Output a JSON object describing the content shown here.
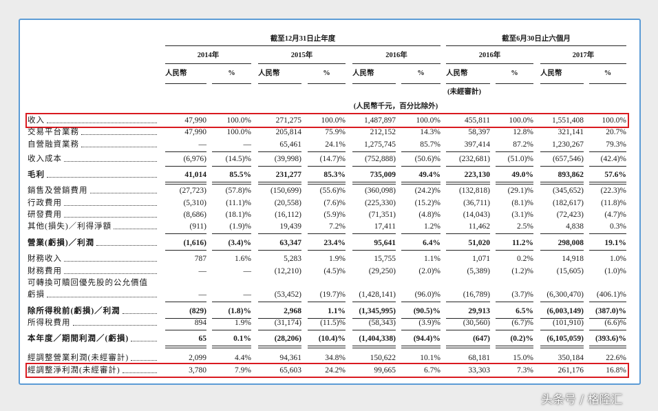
{
  "header": {
    "group_headers": [
      "截至12月31日止年度",
      "截至6月30日止六個月"
    ],
    "years": [
      "2014年",
      "2015年",
      "2016年",
      "2016年",
      "2017年"
    ],
    "column_headers": [
      "人民幣",
      "%",
      "人民幣",
      "%",
      "人民幣",
      "%",
      "人民幣",
      "%",
      "人民幣",
      "%"
    ],
    "unaudited_note": "(未經審計)",
    "unit_note": "(人民幣千元，百分比除外)"
  },
  "table": {
    "rows": [
      {
        "label": "收入",
        "highlighted": true,
        "values": [
          "47,990",
          "100.0%",
          "271,275",
          "100.0%",
          "1,487,897",
          "100.0%",
          "455,811",
          "100.0%",
          "1,551,408",
          "100.0%"
        ]
      },
      {
        "label": "交易平台業務",
        "values": [
          "47,990",
          "100.0%",
          "205,814",
          "75.9%",
          "212,152",
          "14.3%",
          "58,397",
          "12.8%",
          "321,141",
          "20.7%"
        ]
      },
      {
        "label": "自營融資業務",
        "values": [
          "—",
          "—",
          "65,461",
          "24.1%",
          "1,275,745",
          "85.7%",
          "397,414",
          "87.2%",
          "1,230,267",
          "79.3%"
        ]
      },
      {
        "label": "收入成本",
        "values": [
          "(6,976)",
          "(14.5)%",
          "(39,998)",
          "(14.7)%",
          "(752,888)",
          "(50.6)%",
          "(232,681)",
          "(51.0)%",
          "(657,546)",
          "(42.4)%"
        ]
      },
      {
        "label": "毛利",
        "emphasis": true,
        "values": [
          "41,014",
          "85.5%",
          "231,277",
          "85.3%",
          "735,009",
          "49.4%",
          "223,130",
          "49.0%",
          "893,862",
          "57.6%"
        ]
      },
      {
        "label": "銷售及營銷費用",
        "values": [
          "(27,723)",
          "(57.8)%",
          "(150,699)",
          "(55.6)%",
          "(360,098)",
          "(24.2)%",
          "(132,818)",
          "(29.1)%",
          "(345,652)",
          "(22.3)%"
        ]
      },
      {
        "label": "行政費用",
        "values": [
          "(5,310)",
          "(11.1)%",
          "(20,558)",
          "(7.6)%",
          "(225,330)",
          "(15.2)%",
          "(36,711)",
          "(8.1)%",
          "(182,617)",
          "(11.8)%"
        ]
      },
      {
        "label": "研發費用",
        "values": [
          "(8,686)",
          "(18.1)%",
          "(16,112)",
          "(5.9)%",
          "(71,351)",
          "(4.8)%",
          "(14,043)",
          "(3.1)%",
          "(72,423)",
          "(4.7)%"
        ]
      },
      {
        "label": "其他(損失)／利得淨額",
        "values": [
          "(911)",
          "(1.9)%",
          "19,439",
          "7.2%",
          "17,411",
          "1.2%",
          "11,462",
          "2.5%",
          "4,838",
          "0.3%"
        ]
      },
      {
        "label": "營業(虧損)／利潤",
        "emphasis": true,
        "values": [
          "(1,616)",
          "(3.4)%",
          "63,347",
          "23.4%",
          "95,641",
          "6.4%",
          "51,020",
          "11.2%",
          "298,008",
          "19.1%"
        ]
      },
      {
        "label": "財務收入",
        "values": [
          "787",
          "1.6%",
          "5,283",
          "1.9%",
          "15,755",
          "1.1%",
          "1,071",
          "0.2%",
          "14,918",
          "1.0%"
        ]
      },
      {
        "label": "財務費用",
        "values": [
          "—",
          "—",
          "(12,210)",
          "(4.5)%",
          "(29,250)",
          "(2.0)%",
          "(5,389)",
          "(1.2)%",
          "(15,605)",
          "(1.0)%"
        ]
      },
      {
        "label": "可轉換可贖回優先股的公允價值",
        "label_2": "虧損",
        "values": [
          "—",
          "—",
          "(53,452)",
          "(19.7)%",
          "(1,428,141)",
          "(96.0)%",
          "(16,789)",
          "(3.7)%",
          "(6,300,470)",
          "(406.1)%"
        ]
      },
      {
        "label": "除所得稅前(虧損)／利潤",
        "emphasis": true,
        "values": [
          "(829)",
          "(1.8)%",
          "2,968",
          "1.1%",
          "(1,345,995)",
          "(90.5)%",
          "29,913",
          "6.5%",
          "(6,003,149)",
          "(387.0)%"
        ]
      },
      {
        "label": "所得稅費用",
        "values": [
          "894",
          "1.9%",
          "(31,174)",
          "(11.5)%",
          "(58,343)",
          "(3.9)%",
          "(30,560)",
          "(6.7)%",
          "(101,910)",
          "(6.6)%"
        ]
      },
      {
        "label": "本年度／期間利潤／(虧損)",
        "emphasis": true,
        "values": [
          "65",
          "0.1%",
          "(28,206)",
          "(10.4)%",
          "(1,404,338)",
          "(94.4)%",
          "(647)",
          "(0.2)%",
          "(6,105,059)",
          "(393.6)%"
        ]
      },
      {
        "label": "經調整營業利潤(未經審計)",
        "values": [
          "2,099",
          "4.4%",
          "94,361",
          "34.8%",
          "150,622",
          "10.1%",
          "68,181",
          "15.0%",
          "350,184",
          "22.6%"
        ]
      },
      {
        "label": "經調整淨利潤(未經審計)",
        "highlighted": true,
        "values": [
          "3,780",
          "7.9%",
          "65,603",
          "24.2%",
          "99,665",
          "6.7%",
          "33,303",
          "7.3%",
          "261,176",
          "16.8%"
        ]
      }
    ]
  },
  "watermark": "头条号 / 格隆汇"
}
